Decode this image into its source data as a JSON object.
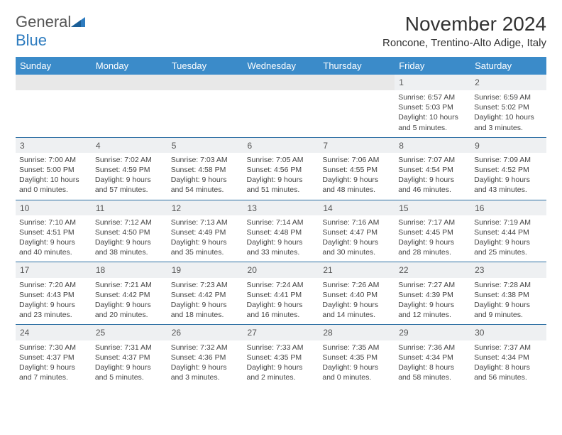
{
  "brand": {
    "part1": "General",
    "part2": "Blue"
  },
  "title": "November 2024",
  "location": "Roncone, Trentino-Alto Adige, Italy",
  "colors": {
    "header_bg": "#3b8bc9",
    "header_text": "#ffffff",
    "daynum_bg": "#eef0f2",
    "row_border": "#2d6fa3",
    "spacer_bg": "#e8e8e8",
    "body_text": "#444444",
    "brand_gray": "#555555",
    "brand_blue": "#2d7bbf"
  },
  "day_headers": [
    "Sunday",
    "Monday",
    "Tuesday",
    "Wednesday",
    "Thursday",
    "Friday",
    "Saturday"
  ],
  "weeks": [
    [
      null,
      null,
      null,
      null,
      null,
      {
        "n": "1",
        "sr": "Sunrise: 6:57 AM",
        "ss": "Sunset: 5:03 PM",
        "d1": "Daylight: 10 hours",
        "d2": "and 5 minutes."
      },
      {
        "n": "2",
        "sr": "Sunrise: 6:59 AM",
        "ss": "Sunset: 5:02 PM",
        "d1": "Daylight: 10 hours",
        "d2": "and 3 minutes."
      }
    ],
    [
      {
        "n": "3",
        "sr": "Sunrise: 7:00 AM",
        "ss": "Sunset: 5:00 PM",
        "d1": "Daylight: 10 hours",
        "d2": "and 0 minutes."
      },
      {
        "n": "4",
        "sr": "Sunrise: 7:02 AM",
        "ss": "Sunset: 4:59 PM",
        "d1": "Daylight: 9 hours",
        "d2": "and 57 minutes."
      },
      {
        "n": "5",
        "sr": "Sunrise: 7:03 AM",
        "ss": "Sunset: 4:58 PM",
        "d1": "Daylight: 9 hours",
        "d2": "and 54 minutes."
      },
      {
        "n": "6",
        "sr": "Sunrise: 7:05 AM",
        "ss": "Sunset: 4:56 PM",
        "d1": "Daylight: 9 hours",
        "d2": "and 51 minutes."
      },
      {
        "n": "7",
        "sr": "Sunrise: 7:06 AM",
        "ss": "Sunset: 4:55 PM",
        "d1": "Daylight: 9 hours",
        "d2": "and 48 minutes."
      },
      {
        "n": "8",
        "sr": "Sunrise: 7:07 AM",
        "ss": "Sunset: 4:54 PM",
        "d1": "Daylight: 9 hours",
        "d2": "and 46 minutes."
      },
      {
        "n": "9",
        "sr": "Sunrise: 7:09 AM",
        "ss": "Sunset: 4:52 PM",
        "d1": "Daylight: 9 hours",
        "d2": "and 43 minutes."
      }
    ],
    [
      {
        "n": "10",
        "sr": "Sunrise: 7:10 AM",
        "ss": "Sunset: 4:51 PM",
        "d1": "Daylight: 9 hours",
        "d2": "and 40 minutes."
      },
      {
        "n": "11",
        "sr": "Sunrise: 7:12 AM",
        "ss": "Sunset: 4:50 PM",
        "d1": "Daylight: 9 hours",
        "d2": "and 38 minutes."
      },
      {
        "n": "12",
        "sr": "Sunrise: 7:13 AM",
        "ss": "Sunset: 4:49 PM",
        "d1": "Daylight: 9 hours",
        "d2": "and 35 minutes."
      },
      {
        "n": "13",
        "sr": "Sunrise: 7:14 AM",
        "ss": "Sunset: 4:48 PM",
        "d1": "Daylight: 9 hours",
        "d2": "and 33 minutes."
      },
      {
        "n": "14",
        "sr": "Sunrise: 7:16 AM",
        "ss": "Sunset: 4:47 PM",
        "d1": "Daylight: 9 hours",
        "d2": "and 30 minutes."
      },
      {
        "n": "15",
        "sr": "Sunrise: 7:17 AM",
        "ss": "Sunset: 4:45 PM",
        "d1": "Daylight: 9 hours",
        "d2": "and 28 minutes."
      },
      {
        "n": "16",
        "sr": "Sunrise: 7:19 AM",
        "ss": "Sunset: 4:44 PM",
        "d1": "Daylight: 9 hours",
        "d2": "and 25 minutes."
      }
    ],
    [
      {
        "n": "17",
        "sr": "Sunrise: 7:20 AM",
        "ss": "Sunset: 4:43 PM",
        "d1": "Daylight: 9 hours",
        "d2": "and 23 minutes."
      },
      {
        "n": "18",
        "sr": "Sunrise: 7:21 AM",
        "ss": "Sunset: 4:42 PM",
        "d1": "Daylight: 9 hours",
        "d2": "and 20 minutes."
      },
      {
        "n": "19",
        "sr": "Sunrise: 7:23 AM",
        "ss": "Sunset: 4:42 PM",
        "d1": "Daylight: 9 hours",
        "d2": "and 18 minutes."
      },
      {
        "n": "20",
        "sr": "Sunrise: 7:24 AM",
        "ss": "Sunset: 4:41 PM",
        "d1": "Daylight: 9 hours",
        "d2": "and 16 minutes."
      },
      {
        "n": "21",
        "sr": "Sunrise: 7:26 AM",
        "ss": "Sunset: 4:40 PM",
        "d1": "Daylight: 9 hours",
        "d2": "and 14 minutes."
      },
      {
        "n": "22",
        "sr": "Sunrise: 7:27 AM",
        "ss": "Sunset: 4:39 PM",
        "d1": "Daylight: 9 hours",
        "d2": "and 12 minutes."
      },
      {
        "n": "23",
        "sr": "Sunrise: 7:28 AM",
        "ss": "Sunset: 4:38 PM",
        "d1": "Daylight: 9 hours",
        "d2": "and 9 minutes."
      }
    ],
    [
      {
        "n": "24",
        "sr": "Sunrise: 7:30 AM",
        "ss": "Sunset: 4:37 PM",
        "d1": "Daylight: 9 hours",
        "d2": "and 7 minutes."
      },
      {
        "n": "25",
        "sr": "Sunrise: 7:31 AM",
        "ss": "Sunset: 4:37 PM",
        "d1": "Daylight: 9 hours",
        "d2": "and 5 minutes."
      },
      {
        "n": "26",
        "sr": "Sunrise: 7:32 AM",
        "ss": "Sunset: 4:36 PM",
        "d1": "Daylight: 9 hours",
        "d2": "and 3 minutes."
      },
      {
        "n": "27",
        "sr": "Sunrise: 7:33 AM",
        "ss": "Sunset: 4:35 PM",
        "d1": "Daylight: 9 hours",
        "d2": "and 2 minutes."
      },
      {
        "n": "28",
        "sr": "Sunrise: 7:35 AM",
        "ss": "Sunset: 4:35 PM",
        "d1": "Daylight: 9 hours",
        "d2": "and 0 minutes."
      },
      {
        "n": "29",
        "sr": "Sunrise: 7:36 AM",
        "ss": "Sunset: 4:34 PM",
        "d1": "Daylight: 8 hours",
        "d2": "and 58 minutes."
      },
      {
        "n": "30",
        "sr": "Sunrise: 7:37 AM",
        "ss": "Sunset: 4:34 PM",
        "d1": "Daylight: 8 hours",
        "d2": "and 56 minutes."
      }
    ]
  ]
}
